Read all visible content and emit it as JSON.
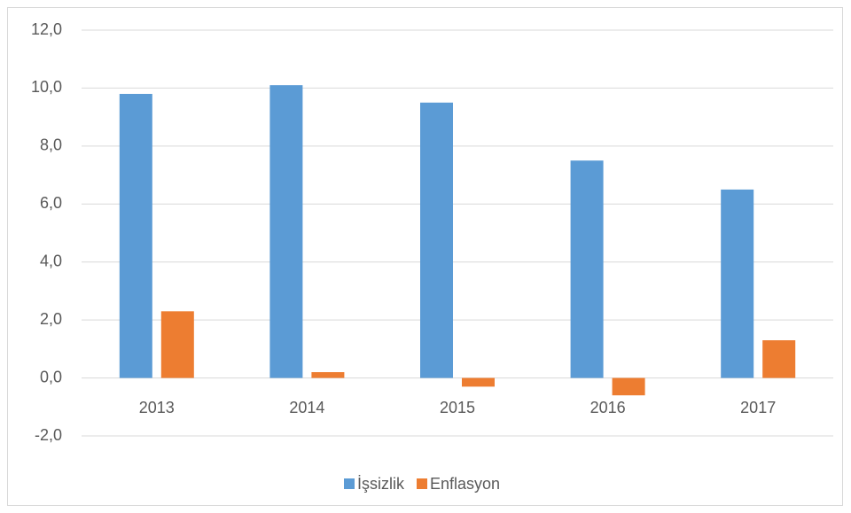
{
  "chart_data": {
    "type": "bar",
    "categories": [
      "2013",
      "2014",
      "2015",
      "2016",
      "2017"
    ],
    "series": [
      {
        "name": "İşsizlik",
        "color": "#5b9bd5",
        "values": [
          9.8,
          10.1,
          9.5,
          7.5,
          6.5
        ]
      },
      {
        "name": "Enflasyon",
        "color": "#ed7d31",
        "values": [
          2.3,
          0.2,
          -0.3,
          -0.6,
          1.3
        ]
      }
    ],
    "ylim": [
      -2,
      12
    ],
    "yticks": [
      {
        "value": -2,
        "label": "-2,0"
      },
      {
        "value": 0,
        "label": "0,0"
      },
      {
        "value": 2,
        "label": "2,0"
      },
      {
        "value": 4,
        "label": "4,0"
      },
      {
        "value": 6,
        "label": "6,0"
      },
      {
        "value": 8,
        "label": "8,0"
      },
      {
        "value": 10,
        "label": "10,0"
      },
      {
        "value": 12,
        "label": "12,0"
      }
    ],
    "grid": true,
    "legend": "bottom"
  }
}
